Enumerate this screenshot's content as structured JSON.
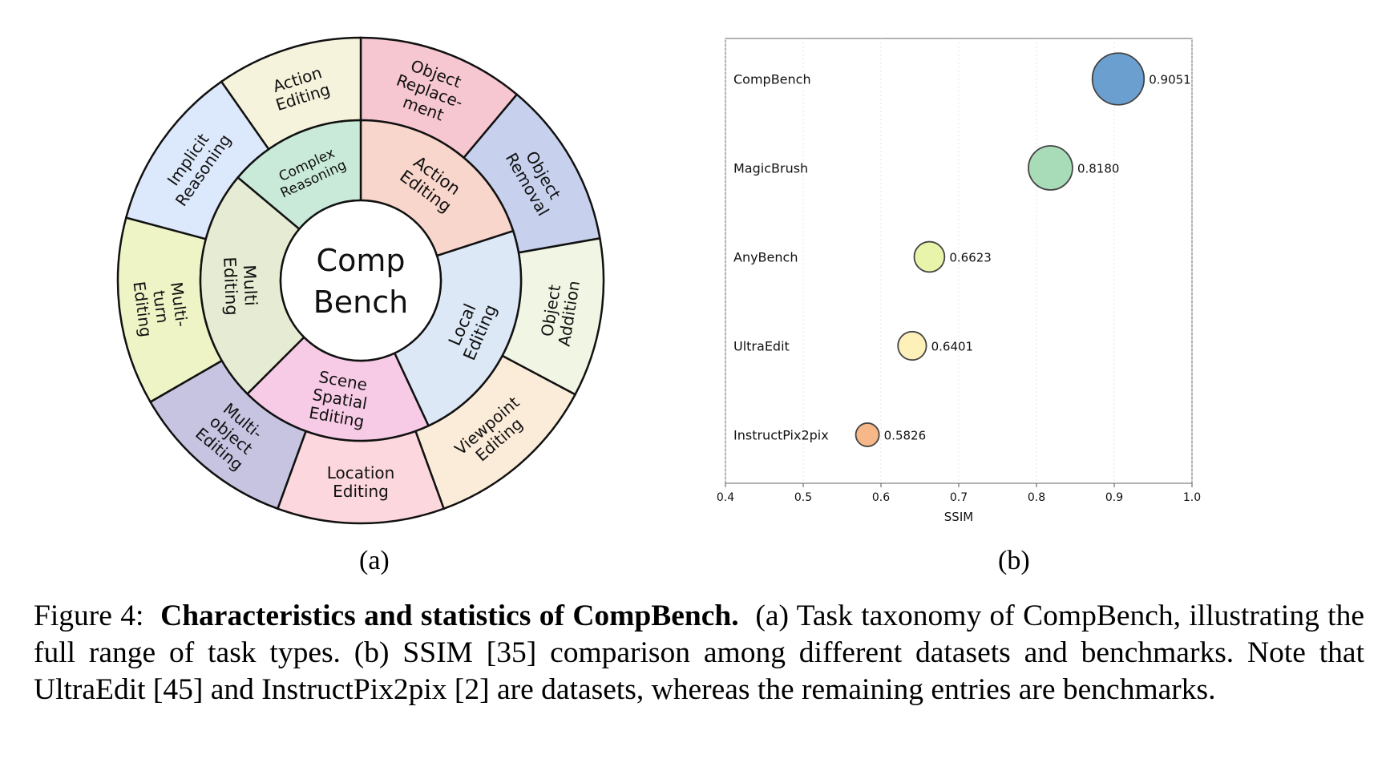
{
  "taxonomy": {
    "center_lines": [
      "Comp",
      "Bench"
    ],
    "inner_ring": [
      {
        "id": "action-editing",
        "lines": [
          "Action",
          "Editing"
        ],
        "color": "#f9d6cc"
      },
      {
        "id": "local-editing",
        "lines": [
          "Local",
          "Editing"
        ],
        "color": "#dde8f7"
      },
      {
        "id": "scene-spatial-editing",
        "lines": [
          "Scene",
          "Spatial",
          "Editing"
        ],
        "color": "#f7cbe6"
      },
      {
        "id": "multi-editing",
        "lines": [
          "Multi",
          "Editing"
        ],
        "color": "#e6ebd3"
      },
      {
        "id": "complex-reasoning",
        "lines": [
          "Complex",
          "Reasoning"
        ],
        "color": "#c9ead9"
      }
    ],
    "outer_ring": [
      {
        "id": "object-replacement",
        "lines": [
          "Object",
          "Replace-",
          "ment"
        ],
        "color": "#f7c7d1"
      },
      {
        "id": "object-removal",
        "lines": [
          "Object",
          "Removal"
        ],
        "color": "#c7d1ee"
      },
      {
        "id": "object-addition",
        "lines": [
          "Object",
          "Addition"
        ],
        "color": "#f0f6e3"
      },
      {
        "id": "viewpoint-editing",
        "lines": [
          "Viewpoint",
          "Editing"
        ],
        "color": "#fbecd9"
      },
      {
        "id": "location-editing",
        "lines": [
          "Location",
          "Editing"
        ],
        "color": "#fcd7de"
      },
      {
        "id": "multi-object-editing",
        "lines": [
          "Multi-",
          "object",
          "Editing"
        ],
        "color": "#c6c4e1"
      },
      {
        "id": "multi-turn-editing",
        "lines": [
          "Multi-",
          "turn",
          "Editing"
        ],
        "color": "#eef4c6"
      },
      {
        "id": "implicit-reasoning",
        "lines": [
          "Implicit",
          "Reasoning"
        ],
        "color": "#dce8fb"
      },
      {
        "id": "action-editing-outer",
        "lines": [
          "Action",
          "Editing"
        ],
        "color": "#f6f3dc"
      }
    ]
  },
  "chart_data": {
    "type": "scatter",
    "categories": [
      "CompBench",
      "MagicBrush",
      "AnyBench",
      "UltraEdit",
      "InstructPix2pix"
    ],
    "values": [
      0.9051,
      0.818,
      0.6623,
      0.6401,
      0.5826
    ],
    "value_labels": [
      "0.9051",
      "0.8180",
      "0.6623",
      "0.6401",
      "0.5826"
    ],
    "colors": [
      "#6a9fd0",
      "#a8dbb8",
      "#e7f4aa",
      "#fdf0b8",
      "#f6b888"
    ],
    "xlabel": "SSIM",
    "xlim": [
      0.4,
      1.0
    ],
    "xticks": [
      "0.4",
      "0.5",
      "0.6",
      "0.7",
      "0.8",
      "0.9",
      "1.0"
    ],
    "grid": true
  },
  "subfigure_labels": {
    "a": "(a)",
    "b": "(b)"
  },
  "caption": {
    "prefix": "Figure 4:",
    "bold": "Characteristics and statistics of CompBench.",
    "text": "(a) Task taxonomy of CompBench, illustrating the full range of task types. (b) SSIM [35] comparison among different datasets and benchmarks. Note that UltraEdit [45] and InstructPix2pix [2] are datasets, whereas the remaining entries are benchmarks."
  }
}
